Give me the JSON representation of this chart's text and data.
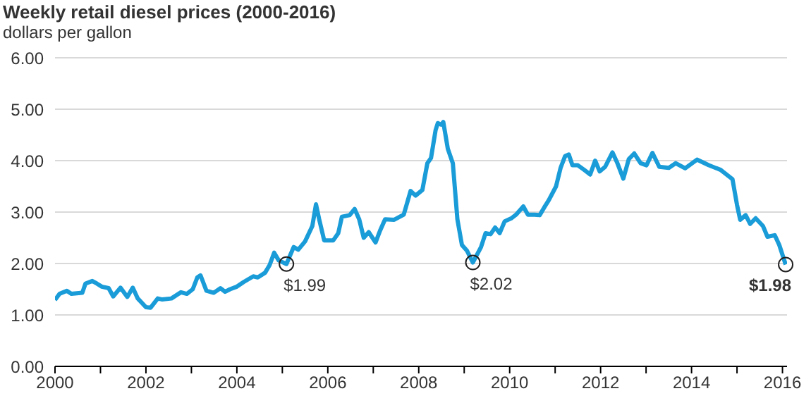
{
  "chart_data": {
    "type": "line",
    "title": "Weekly retail diesel prices (2000-2016)",
    "subtitle": "dollars per gallon",
    "x": [
      2000,
      2000.1,
      2000.26,
      2000.36,
      2000.6,
      2000.67,
      2000.82,
      2000.92,
      2001.03,
      2001.18,
      2001.28,
      2001.44,
      2001.59,
      2001.71,
      2001.82,
      2002,
      2002.1,
      2002.26,
      2002.36,
      2002.56,
      2002.77,
      2002.9,
      2003.03,
      2003.13,
      2003.2,
      2003.33,
      2003.49,
      2003.64,
      2003.74,
      2003.85,
      2004,
      2004.15,
      2004.36,
      2004.46,
      2004.62,
      2004.72,
      2004.82,
      2004.92,
      2005.09,
      2005.25,
      2005.35,
      2005.5,
      2005.66,
      2005.74,
      2005.81,
      2005.92,
      2006.12,
      2006.23,
      2006.31,
      2006.48,
      2006.59,
      2006.69,
      2006.79,
      2006.9,
      2007.05,
      2007.15,
      2007.26,
      2007.46,
      2007.67,
      2007.82,
      2007.93,
      2008.08,
      2008.19,
      2008.27,
      2008.37,
      2008.42,
      2008.49,
      2008.54,
      2008.64,
      2008.75,
      2008.85,
      2008.95,
      2009.06,
      2009.19,
      2009.37,
      2009.47,
      2009.58,
      2009.68,
      2009.78,
      2009.89,
      2010.04,
      2010.14,
      2010.3,
      2010.4,
      2010.55,
      2010.66,
      2010.76,
      2010.86,
      2011.02,
      2011.12,
      2011.22,
      2011.3,
      2011.38,
      2011.5,
      2011.64,
      2011.77,
      2011.88,
      2011.98,
      2012.1,
      2012.26,
      2012.36,
      2012.5,
      2012.62,
      2012.74,
      2012.88,
      2013.01,
      2013.14,
      2013.29,
      2013.5,
      2013.65,
      2013.86,
      2014.12,
      2014.38,
      2014.64,
      2014.9,
      2015,
      2015.07,
      2015.19,
      2015.29,
      2015.41,
      2015.57,
      2015.67,
      2015.83,
      2015.93,
      2016.07
    ],
    "series": [
      {
        "color": "#1a9cd8",
        "values": [
          1.29,
          1.41,
          1.47,
          1.41,
          1.43,
          1.61,
          1.66,
          1.61,
          1.55,
          1.52,
          1.36,
          1.53,
          1.35,
          1.53,
          1.32,
          1.15,
          1.14,
          1.32,
          1.3,
          1.32,
          1.44,
          1.41,
          1.5,
          1.73,
          1.77,
          1.47,
          1.43,
          1.52,
          1.45,
          1.5,
          1.55,
          1.64,
          1.75,
          1.73,
          1.82,
          1.97,
          2.21,
          2.06,
          1.99,
          2.32,
          2.27,
          2.43,
          2.73,
          3.15,
          2.86,
          2.45,
          2.45,
          2.59,
          2.91,
          2.94,
          3.06,
          2.86,
          2.5,
          2.61,
          2.41,
          2.64,
          2.86,
          2.85,
          2.95,
          3.41,
          3.32,
          3.43,
          3.95,
          4.05,
          4.59,
          4.73,
          4.7,
          4.75,
          4.23,
          3.95,
          2.86,
          2.36,
          2.25,
          2.02,
          2.32,
          2.59,
          2.57,
          2.7,
          2.59,
          2.82,
          2.88,
          2.95,
          3.11,
          2.95,
          2.95,
          2.94,
          3.09,
          3.23,
          3.5,
          3.86,
          4.09,
          4.12,
          3.91,
          3.91,
          3.82,
          3.73,
          4.0,
          3.79,
          3.88,
          4.16,
          3.97,
          3.65,
          4.03,
          4.14,
          3.95,
          3.91,
          4.15,
          3.88,
          3.86,
          3.95,
          3.85,
          4.02,
          3.91,
          3.82,
          3.64,
          3.14,
          2.85,
          2.94,
          2.77,
          2.88,
          2.73,
          2.52,
          2.55,
          2.36,
          1.98
        ]
      }
    ],
    "xlim": [
      2000,
      2016.1
    ],
    "xticks": [
      2000,
      {
        "value": 2001,
        "label": null
      },
      2002,
      {
        "value": 2003,
        "label": null
      },
      2004,
      {
        "value": 2005,
        "label": null
      },
      2006,
      {
        "value": 2007,
        "label": null
      },
      2008,
      {
        "value": 2009,
        "label": null
      },
      2010,
      {
        "value": 2011,
        "label": null
      },
      2012,
      {
        "value": 2013,
        "label": null
      },
      2014,
      {
        "value": 2015,
        "label": null
      },
      2016
    ],
    "ylim": [
      0,
      6
    ],
    "yticks": [
      {
        "value": 0,
        "label": "0.00"
      },
      {
        "value": 1,
        "label": "1.00"
      },
      {
        "value": 2,
        "label": "2.00"
      },
      {
        "value": 3,
        "label": "3.00"
      },
      {
        "value": 4,
        "label": "4.00"
      },
      {
        "value": 5,
        "label": "5.00"
      },
      {
        "value": 6,
        "label": "6.00"
      }
    ],
    "grid": "y",
    "annotations": [
      {
        "text": "$1.99",
        "x": 2005.09,
        "y": 1.99
      },
      {
        "text": "$2.02",
        "x": 2009.19,
        "y": 2.02
      },
      {
        "text": "$1.98",
        "x": 2016.07,
        "y": 1.98
      }
    ]
  }
}
